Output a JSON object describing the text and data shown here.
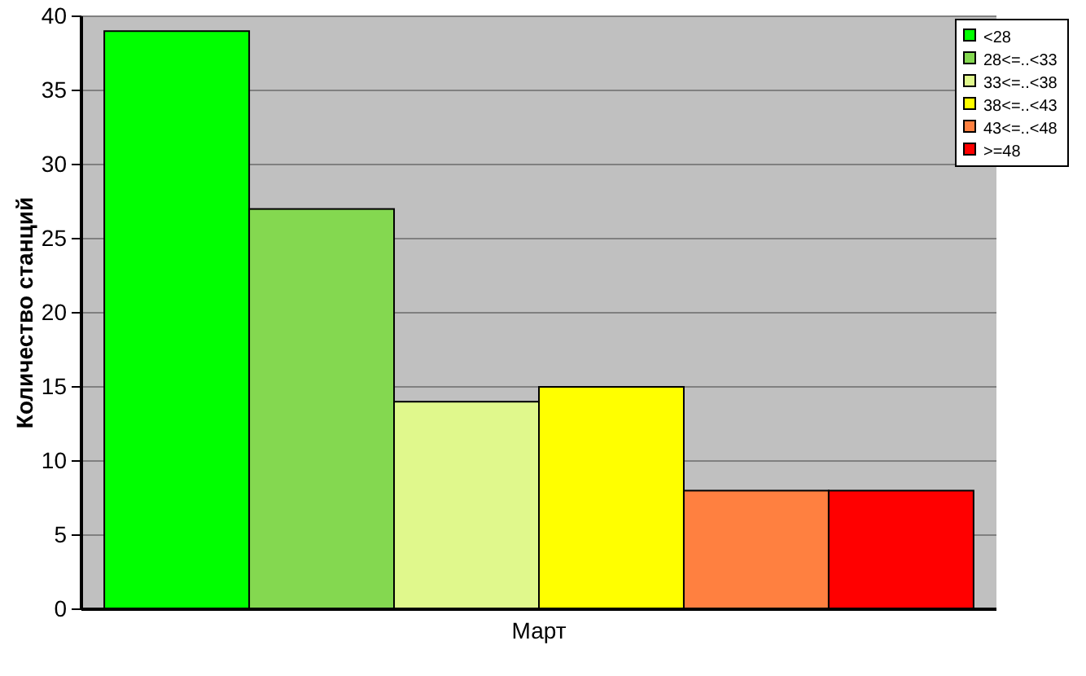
{
  "chart_data": {
    "type": "bar",
    "categories": [
      "Март"
    ],
    "ylabel": "Количество станций",
    "ylim": [
      0,
      40
    ],
    "yticks": [
      0,
      5,
      10,
      15,
      20,
      25,
      30,
      35,
      40
    ],
    "grid": "y",
    "legend": "top right",
    "series": [
      {
        "name": "<28",
        "color": "#00ff00",
        "values": [
          39
        ]
      },
      {
        "name": "28<=..<33",
        "color": "#84d850",
        "values": [
          27
        ]
      },
      {
        "name": "33<=..<38",
        "color": "#e0f88c",
        "values": [
          14
        ]
      },
      {
        "name": "38<=..<43",
        "color": "#ffff00",
        "values": [
          15
        ]
      },
      {
        "name": "43<=..<48",
        "color": "#ff8040",
        "values": [
          8
        ]
      },
      {
        "name": ">=48",
        "color": "#ff0000",
        "values": [
          8
        ]
      }
    ]
  }
}
